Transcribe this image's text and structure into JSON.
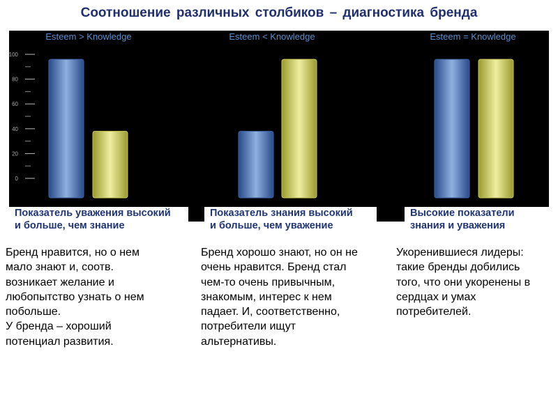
{
  "title": "Соотношение  различных  столбиков – диагностика  бренда",
  "chart_data": [
    {
      "type": "bar",
      "title": "Esteem > Knowledge",
      "categories": [
        null,
        null
      ],
      "values": [
        96,
        38
      ],
      "colors": [
        "#3f63a8",
        "#c9c655"
      ],
      "ylim": [
        0,
        100
      ],
      "yticks": [
        0,
        20,
        40,
        60,
        80,
        100
      ]
    },
    {
      "type": "bar",
      "title": "Esteem < Knowledge",
      "categories": [
        null,
        null
      ],
      "values": [
        38,
        96
      ],
      "colors": [
        "#3f63a8",
        "#c9c655"
      ],
      "ylim": [
        0,
        100
      ]
    },
    {
      "type": "bar",
      "title": "Esteem = Knowledge",
      "categories": [
        null,
        null
      ],
      "values": [
        96,
        96
      ],
      "colors": [
        "#3f63a8",
        "#c9c655"
      ],
      "ylim": [
        0,
        100
      ]
    }
  ],
  "captions": [
    [
      "Показатель уважения высокий",
      "и больше, чем знание"
    ],
    [
      "Показатель знания высокий",
      "и больше, чем уважение"
    ],
    [
      "Высокие показатели",
      "знания и уважения"
    ]
  ],
  "descriptions": [
    [
      "Бренд нравится, но о нем",
      "мало знают и, соотв.",
      "возникает желание и",
      "любопытство узнать о нем",
      "побольше.",
      "У бренда – хороший",
      "потенциал развития."
    ],
    [
      "Бренд хорошо знают, но он не",
      "очень нравится. Бренд стал",
      "чем-то очень привычным,",
      "знакомым, интерес к нем",
      "падает. И, соответственно,",
      "потребители ищут",
      "альтернативы."
    ],
    [
      "Укоренившиеся лидеры:",
      "такие бренды добились",
      "того, что они укоренены в",
      "сердцах и умах",
      "потребителей."
    ]
  ]
}
